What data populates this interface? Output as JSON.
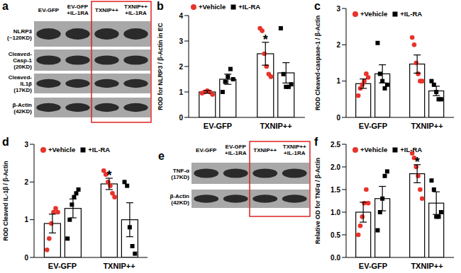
{
  "blots": [
    {
      "title": "a",
      "lanes": [
        "EV-GFP",
        "EV-GFP +IL-1RA",
        "TXNIP++",
        "TXNIP++ +IL-1RA"
      ],
      "rows": [
        {
          "label": [
            "NLRP3",
            "(~120KD)"
          ]
        },
        {
          "label": [
            "Cleaved-",
            "Casp-1",
            "(20KD)"
          ]
        },
        {
          "label": [
            "Cleaved-",
            "IL1β",
            "(17KD)"
          ]
        },
        {
          "label": [
            "β-Actin",
            "(42KD)"
          ]
        }
      ],
      "highlight_lanes": [
        2,
        3
      ]
    },
    {
      "title": "e",
      "lanes": [
        "EV-GFP",
        "EV-GFP +IL-1RA",
        "TXNIP++",
        "TXNIP++ +IL-1RA"
      ],
      "rows": [
        {
          "label": [
            "TNF-α",
            "(17KD)"
          ]
        },
        {
          "label": [
            "β-Actin",
            "(42KD)"
          ]
        }
      ],
      "highlight_lanes": [
        2,
        3
      ]
    }
  ],
  "chart_data": [
    {
      "title": "b",
      "type": "bar",
      "y_label": "ROD for NLRP3 / β-Actin in EC",
      "categories": [
        "EV-GFP",
        "TXNIP++"
      ],
      "ylim": [
        0,
        4
      ],
      "yticks": [
        0,
        1,
        2,
        3,
        4
      ],
      "legend": "top",
      "series": [
        {
          "name": "+Vehicle",
          "color": "#e8332a",
          "marker": "circle",
          "values": [
            1.0,
            2.5
          ],
          "errors": [
            0.05,
            0.45
          ],
          "points": [
            [
              0.95,
              1.0,
              1.05,
              1.0,
              0.9
            ],
            [
              3.5,
              3.4,
              2.5,
              2.0,
              1.7,
              1.6
            ]
          ]
        },
        {
          "name": "+IL-RA",
          "color": "#000000",
          "marker": "square",
          "values": [
            1.5,
            1.75
          ],
          "errors": [
            0.2,
            0.4
          ],
          "points": [
            [
              1.0,
              1.4,
              1.6,
              1.9,
              1.5
            ],
            [
              3.5,
              1.7,
              1.2,
              1.2,
              1.3
            ]
          ]
        }
      ],
      "annotations": [
        {
          "category": "TXNIP++",
          "series": "+Vehicle",
          "text": "*"
        }
      ]
    },
    {
      "title": "c",
      "type": "bar",
      "y_label": "ROD Cleaved-caspase-1 / β-Actin",
      "categories": [
        "EV-GFP",
        "TXNIP++"
      ],
      "ylim": [
        0,
        3
      ],
      "yticks": [
        0,
        1,
        2,
        3
      ],
      "legend": "upper left",
      "series": [
        {
          "name": "+Vehicle",
          "color": "#e8332a",
          "marker": "circle",
          "values": [
            0.93,
            1.47
          ],
          "errors": [
            0.13,
            0.25
          ],
          "points": [
            [
              0.6,
              0.8,
              0.9,
              1.0,
              1.2,
              1.1
            ],
            [
              2.2,
              2.0,
              1.5,
              1.2,
              1.0,
              1.0
            ]
          ]
        },
        {
          "name": "+IL-RA",
          "color": "#000000",
          "marker": "square",
          "values": [
            1.2,
            0.73
          ],
          "errors": [
            0.25,
            0.13
          ],
          "points": [
            [
              2.05,
              1.2,
              1.0,
              0.8,
              0.9
            ],
            [
              1.0,
              0.9,
              0.7,
              0.5,
              0.5
            ]
          ]
        }
      ],
      "annotations": []
    },
    {
      "title": "d",
      "type": "bar",
      "y_label": "ROD Cleaved IL-1β / β-Actin",
      "categories": [
        "EV-GFP",
        "TXNIP++"
      ],
      "ylim": [
        0,
        3
      ],
      "yticks": [
        0,
        1,
        2,
        3
      ],
      "legend": "upper left",
      "series": [
        {
          "name": "+Vehicle",
          "color": "#e8332a",
          "marker": "circle",
          "values": [
            0.9,
            1.95
          ],
          "errors": [
            0.25,
            0.15
          ],
          "points": [
            [
              0.2,
              0.5,
              0.9,
              1.2,
              1.3,
              1.2
            ],
            [
              2.3,
              2.2,
              2.0,
              1.9,
              1.7,
              1.6
            ]
          ]
        },
        {
          "name": "+IL-RA",
          "color": "#000000",
          "marker": "square",
          "values": [
            1.3,
            1.0
          ],
          "errors": [
            0.25,
            0.45
          ],
          "points": [
            [
              0.5,
              1.0,
              1.4,
              1.6,
              1.7,
              1.8
            ],
            [
              2.0,
              1.9,
              0.8,
              0.3,
              0.1
            ]
          ]
        }
      ],
      "annotations": [
        {
          "category": "TXNIP++",
          "series": "+Vehicle",
          "text": "*"
        }
      ]
    },
    {
      "title": "f",
      "type": "bar",
      "y_label": "Relative OD for TNFα / β-Actin",
      "categories": [
        "EV-GFP",
        "TXNIP++"
      ],
      "ylim": [
        0,
        2.5
      ],
      "yticks": [
        {
          "value": 0,
          "label": "0.0"
        },
        {
          "value": 0.5,
          "label": "0.5"
        },
        {
          "value": 1,
          "label": "1.0"
        },
        {
          "value": 1.5,
          "label": "1.5"
        },
        {
          "value": 2,
          "label": "2.0"
        },
        {
          "value": 2.5,
          "label": "2.5"
        }
      ],
      "legend": "upper left",
      "series": [
        {
          "name": "+Vehicle",
          "color": "#e8332a",
          "marker": "circle",
          "values": [
            1.0,
            1.85
          ],
          "errors": [
            0.22,
            0.2
          ],
          "points": [
            [
              0.5,
              0.7,
              0.9,
              1.2,
              1.5,
              1.2
            ],
            [
              2.3,
              2.2,
              2.0,
              1.8,
              1.5,
              1.3
            ]
          ]
        },
        {
          "name": "+IL-RA",
          "color": "#000000",
          "marker": "square",
          "values": [
            1.3,
            1.2
          ],
          "errors": [
            0.27,
            0.25
          ],
          "points": [
            [
              0.6,
              1.0,
              1.3,
              1.8,
              1.9
            ],
            [
              1.7,
              1.5,
              0.9,
              0.9,
              1.0
            ]
          ]
        }
      ],
      "annotations": [
        {
          "category": "TXNIP++",
          "series": "+Vehicle",
          "text": "*"
        }
      ]
    }
  ]
}
